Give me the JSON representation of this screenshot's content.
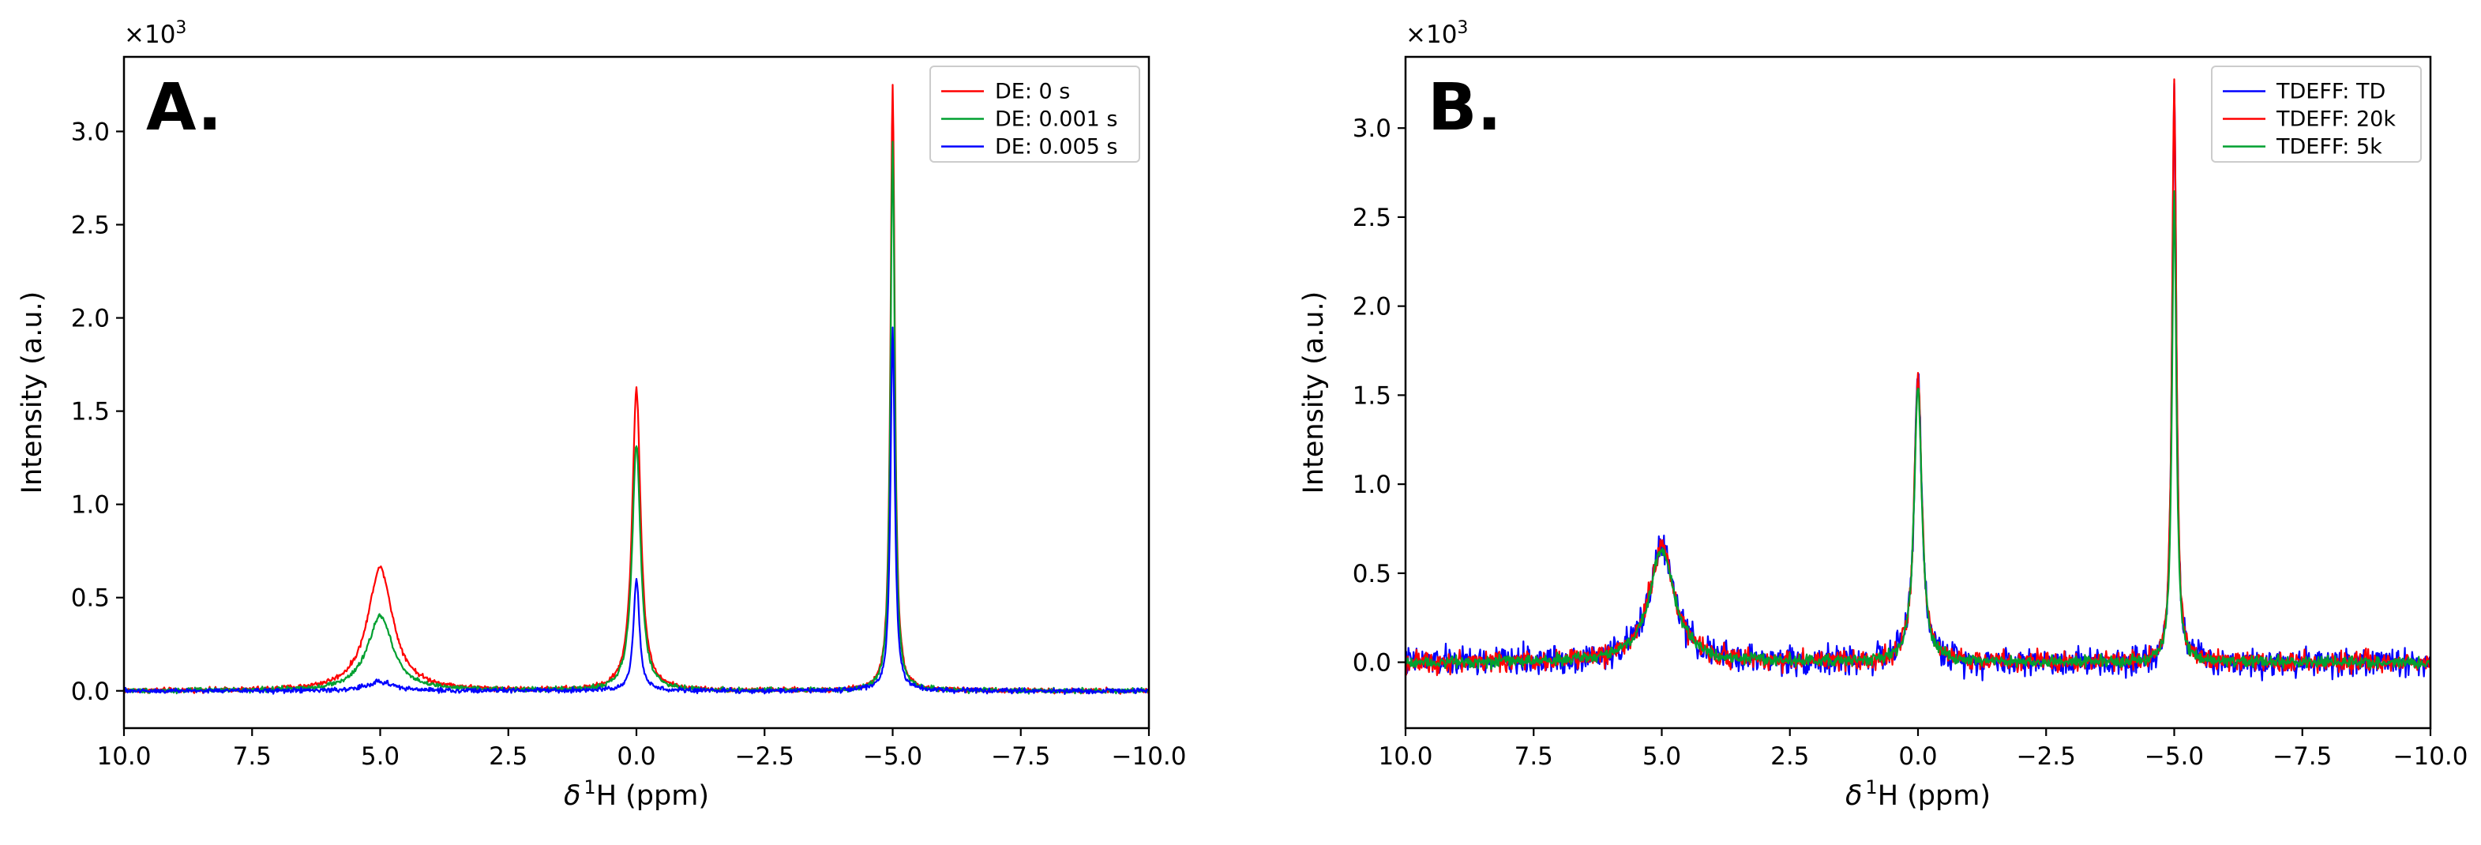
{
  "chart_data": [
    {
      "type": "line",
      "panel_label": "A.",
      "ylabel": "Intensity (a.u.)",
      "xlabel_symbol": "δ",
      "xlabel_sup": "1",
      "xlabel_rest": "H (ppm)",
      "y_scale_base": "×10",
      "y_scale_exp": "3",
      "xlim": [
        10.0,
        -10.0
      ],
      "ylim": [
        -0.2,
        3.4
      ],
      "xticks": [
        10.0,
        7.5,
        5.0,
        2.5,
        0.0,
        -2.5,
        -5.0,
        -7.5,
        -10.0
      ],
      "xtick_labels": [
        "10.0",
        "7.5",
        "5.0",
        "2.5",
        "0.0",
        "−2.5",
        "−5.0",
        "−7.5",
        "−10.0"
      ],
      "yticks": [
        0.0,
        0.5,
        1.0,
        1.5,
        2.0,
        2.5,
        3.0
      ],
      "ytick_labels": [
        "0.0",
        "0.5",
        "1.0",
        "1.5",
        "2.0",
        "2.5",
        "3.0"
      ],
      "grid": false,
      "legend_position": "top-right",
      "series": [
        {
          "name": "DE: 0 s",
          "color": "#ff0000",
          "noise": 0.008,
          "peaks": [
            {
              "center": 5.0,
              "height": 0.66,
              "width": 0.3
            },
            {
              "center": 0.0,
              "height": 1.62,
              "width": 0.1
            },
            {
              "center": -5.0,
              "height": 3.25,
              "width": 0.05
            }
          ]
        },
        {
          "name": "DE: 0.001 s",
          "color": "#00a030",
          "noise": 0.008,
          "peaks": [
            {
              "center": 5.0,
              "height": 0.4,
              "width": 0.3
            },
            {
              "center": 0.0,
              "height": 1.32,
              "width": 0.1
            },
            {
              "center": -5.0,
              "height": 2.95,
              "width": 0.05
            }
          ]
        },
        {
          "name": "DE: 0.005 s",
          "color": "#0000ff",
          "noise": 0.008,
          "peaks": [
            {
              "center": 5.0,
              "height": 0.05,
              "width": 0.3
            },
            {
              "center": 0.0,
              "height": 0.6,
              "width": 0.07
            },
            {
              "center": -5.0,
              "height": 1.96,
              "width": 0.05
            }
          ]
        }
      ]
    },
    {
      "type": "line",
      "panel_label": "B.",
      "ylabel": "Intensity (a.u.)",
      "xlabel_symbol": "δ",
      "xlabel_sup": "1",
      "xlabel_rest": "H (ppm)",
      "y_scale_base": "×10",
      "y_scale_exp": "3",
      "xlim": [
        10.0,
        -10.0
      ],
      "ylim": [
        -0.37,
        3.4
      ],
      "xticks": [
        10.0,
        7.5,
        5.0,
        2.5,
        0.0,
        -2.5,
        -5.0,
        -7.5,
        -10.0
      ],
      "xtick_labels": [
        "10.0",
        "7.5",
        "5.0",
        "2.5",
        "0.0",
        "−2.5",
        "−5.0",
        "−7.5",
        "−10.0"
      ],
      "yticks": [
        0.0,
        0.5,
        1.0,
        1.5,
        2.0,
        2.5,
        3.0
      ],
      "ytick_labels": [
        "0.0",
        "0.5",
        "1.0",
        "1.5",
        "2.0",
        "2.5",
        "3.0"
      ],
      "grid": false,
      "legend_position": "top-right",
      "series": [
        {
          "name": "TDEFF: TD",
          "color": "#0000ff",
          "noise": 0.05,
          "peaks": [
            {
              "center": 5.0,
              "height": 0.65,
              "width": 0.3
            },
            {
              "center": 0.0,
              "height": 1.6,
              "width": 0.09
            },
            {
              "center": -5.0,
              "height": 3.2,
              "width": 0.05
            }
          ]
        },
        {
          "name": "TDEFF: 20k",
          "color": "#ff0000",
          "noise": 0.035,
          "peaks": [
            {
              "center": 5.0,
              "height": 0.65,
              "width": 0.3
            },
            {
              "center": 0.0,
              "height": 1.58,
              "width": 0.09
            },
            {
              "center": -5.0,
              "height": 3.26,
              "width": 0.05
            }
          ]
        },
        {
          "name": "TDEFF: 5k",
          "color": "#00a030",
          "noise": 0.02,
          "peaks": [
            {
              "center": 5.0,
              "height": 0.63,
              "width": 0.3
            },
            {
              "center": 0.0,
              "height": 1.55,
              "width": 0.09
            },
            {
              "center": -5.0,
              "height": 2.65,
              "width": 0.05
            }
          ]
        }
      ]
    }
  ]
}
